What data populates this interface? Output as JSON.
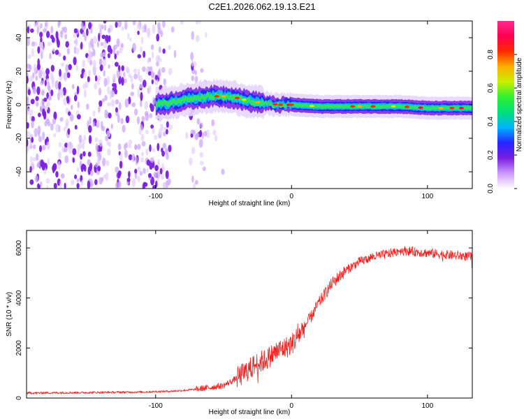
{
  "title": "C2E1.2026.062.19.13.E21",
  "chart_data": [
    {
      "type": "heatmap",
      "title": "C2E1.2026.062.19.13.E21",
      "xlabel": "Height of straight line (km)",
      "ylabel": "Frequency (Hz)",
      "xlim": [
        -195,
        133
      ],
      "ylim": [
        -50,
        50
      ],
      "xticks": [
        -100,
        0,
        100
      ],
      "yticks": [
        -40,
        -20,
        0,
        20,
        40
      ],
      "colorbar": {
        "label": "Normalized spectral amplitude",
        "range": [
          0,
          1
        ],
        "ticks": [
          "0.0",
          "0.2",
          "0.4",
          "0.6",
          "0.8"
        ],
        "colors": [
          "#ffffff",
          "#cc99ff",
          "#7a1fe0",
          "#2424ff",
          "#00b4ff",
          "#00e07a",
          "#30f030",
          "#c8f000",
          "#ffb000",
          "#ff2a00",
          "#ff0050",
          "#ff2a90"
        ]
      },
      "ridge": {
        "x_km": [
          -100,
          -90,
          -80,
          -70,
          -60,
          -55,
          -50,
          -40,
          -30,
          -20,
          -10,
          0,
          20,
          40,
          60,
          80,
          100,
          120,
          133
        ],
        "freq_hz": [
          0,
          1,
          3,
          4,
          5,
          5,
          5,
          4,
          2,
          1,
          0,
          0,
          -1,
          -1,
          -1,
          -1,
          -2,
          -2,
          -2
        ]
      },
      "noise_until_km": -60
    },
    {
      "type": "line",
      "xlabel": "Height of straight line (km)",
      "ylabel": "SNR (10 * v/v)",
      "xlim": [
        -195,
        133
      ],
      "ylim": [
        0,
        6700
      ],
      "xticks": [
        -100,
        0,
        100
      ],
      "yticks": [
        0,
        2000,
        4000,
        6000
      ],
      "series": [
        {
          "name": "SNR",
          "color": "#ee2222",
          "x": [
            -195,
            -150,
            -110,
            -90,
            -80,
            -70,
            -60,
            -50,
            -45,
            -40,
            -35,
            -30,
            -25,
            -20,
            -15,
            -10,
            -5,
            0,
            5,
            10,
            15,
            20,
            25,
            30,
            40,
            50,
            60,
            70,
            80,
            90,
            100,
            110,
            120,
            133
          ],
          "y": [
            200,
            220,
            240,
            270,
            300,
            350,
            420,
            500,
            650,
            800,
            1000,
            1200,
            1400,
            1500,
            1700,
            1900,
            2000,
            2150,
            2500,
            2900,
            3300,
            3800,
            4200,
            4600,
            5100,
            5450,
            5650,
            5750,
            5900,
            5850,
            5800,
            5750,
            5700,
            5650
          ]
        }
      ]
    }
  ]
}
